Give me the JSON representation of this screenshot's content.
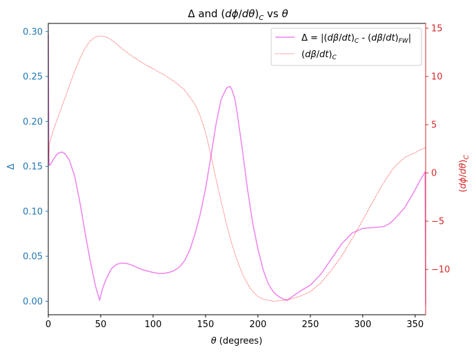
{
  "chart_data": {
    "type": "line",
    "title": "Δ and (dϕ/dθ)_C vs θ",
    "xlabel": "θ (degrees)",
    "ylabel_left": "Δ",
    "ylabel_right": "(dϕ/dθ)_C",
    "xlim": [
      0,
      360
    ],
    "ylim_left": [
      -0.015,
      0.309
    ],
    "ylim_right": [
      -14.7,
      15.5
    ],
    "x_ticks": [
      0,
      50,
      100,
      150,
      200,
      250,
      300,
      350
    ],
    "y_ticks_left": [
      0.0,
      0.05,
      0.1,
      0.15,
      0.2,
      0.25,
      0.3
    ],
    "y_ticks_right": [
      -10,
      -5,
      0,
      5,
      10,
      15
    ],
    "legend_position": "upper right",
    "grid": false,
    "colors": {
      "delta": "#ee82ee",
      "dbeta": "#ff0000",
      "left_axis": "#1f77b4",
      "right_axis": "#d62728",
      "frame": "#000000"
    },
    "series": [
      {
        "name": "Δ = |(dβ/dt)_C - (dβ/dt)_FW|",
        "axis": "left",
        "style": "solid",
        "x": [
          0,
          0.5,
          1,
          2,
          5,
          8,
          10,
          13,
          16,
          20,
          25,
          30,
          35,
          40,
          45,
          48,
          49,
          50,
          52,
          55,
          60,
          65,
          70,
          75,
          80,
          90,
          100,
          105,
          110,
          115,
          120,
          125,
          130,
          135,
          140,
          145,
          150,
          155,
          160,
          165,
          170,
          173,
          175,
          178,
          180,
          185,
          190,
          195,
          200,
          205,
          210,
          215,
          220,
          225,
          228,
          230,
          235,
          240,
          250,
          260,
          270,
          280,
          290,
          300,
          310,
          320,
          325,
          330,
          340,
          350,
          355,
          358,
          359.5,
          360
        ],
        "y": [
          0.297,
          0.16,
          0.151,
          0.152,
          0.158,
          0.163,
          0.165,
          0.166,
          0.164,
          0.157,
          0.14,
          0.111,
          0.077,
          0.045,
          0.017,
          0.005,
          0.001,
          0.006,
          0.015,
          0.024,
          0.036,
          0.041,
          0.0425,
          0.042,
          0.04,
          0.035,
          0.032,
          0.031,
          0.031,
          0.032,
          0.034,
          0.038,
          0.045,
          0.057,
          0.075,
          0.097,
          0.125,
          0.16,
          0.197,
          0.225,
          0.237,
          0.239,
          0.236,
          0.225,
          0.211,
          0.17,
          0.125,
          0.087,
          0.058,
          0.035,
          0.019,
          0.01,
          0.005,
          0.002,
          0.001,
          0.003,
          0.007,
          0.011,
          0.018,
          0.03,
          0.047,
          0.064,
          0.076,
          0.081,
          0.082,
          0.083,
          0.086,
          0.091,
          0.104,
          0.124,
          0.135,
          0.141,
          0.144,
          -0.004
        ]
      },
      {
        "name": "(dβ/dt)_C",
        "axis": "right",
        "style": "dotted",
        "x": [
          0,
          1,
          5,
          10,
          15,
          20,
          25,
          30,
          35,
          40,
          45,
          50,
          55,
          60,
          65,
          70,
          75,
          80,
          90,
          100,
          110,
          120,
          130,
          140,
          145,
          150,
          155,
          160,
          165,
          170,
          175,
          180,
          185,
          190,
          195,
          200,
          205,
          210,
          215,
          220,
          225,
          230,
          240,
          250,
          260,
          270,
          280,
          290,
          300,
          310,
          320,
          330,
          340,
          350,
          355,
          360
        ],
        "y": [
          1.0,
          3.0,
          4.5,
          6.0,
          7.5,
          9.0,
          10.5,
          11.8,
          12.9,
          13.7,
          14.1,
          14.2,
          14.1,
          13.8,
          13.4,
          12.9,
          12.5,
          12.1,
          11.4,
          10.8,
          10.2,
          9.5,
          8.6,
          7.1,
          5.9,
          4.2,
          1.9,
          -0.6,
          -3.0,
          -5.3,
          -7.3,
          -9.0,
          -10.4,
          -11.5,
          -12.3,
          -12.8,
          -13.1,
          -13.2,
          -13.3,
          -13.25,
          -13.2,
          -13.1,
          -12.8,
          -12.3,
          -11.4,
          -10.1,
          -8.6,
          -6.8,
          -4.9,
          -2.9,
          -1.0,
          0.6,
          1.6,
          2.1,
          2.4,
          2.6
        ]
      }
    ]
  }
}
